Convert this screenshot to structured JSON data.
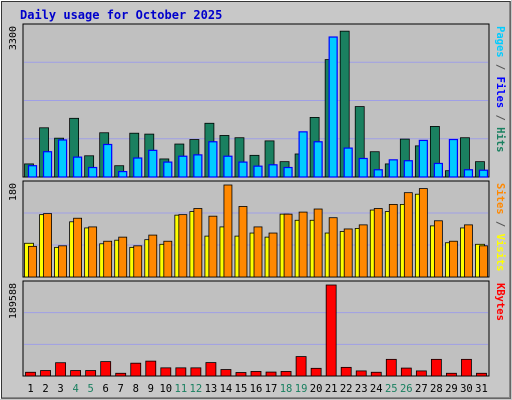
{
  "chart_data": [
    {
      "type": "bar",
      "title": "Daily usage for October 2025",
      "panel": "top",
      "ymax_label": "3300",
      "ylim": [
        0,
        3300
      ],
      "right_labels": [
        {
          "text": "Pages",
          "color": "#00ccff"
        },
        {
          "text": " / ",
          "color": "#555555"
        },
        {
          "text": "Files",
          "color": "#0000ff"
        },
        {
          "text": " / ",
          "color": "#555555"
        },
        {
          "text": "Hits",
          "color": "#1a8060"
        }
      ],
      "categories": [
        "1",
        "2",
        "3",
        "4",
        "5",
        "6",
        "7",
        "8",
        "9",
        "10",
        "11",
        "12",
        "13",
        "14",
        "15",
        "16",
        "17",
        "18",
        "19",
        "20",
        "21",
        "22",
        "23",
        "24",
        "25",
        "26",
        "27",
        "28",
        "29",
        "30",
        "31"
      ],
      "weekend_days": [
        "4",
        "5",
        "11",
        "12",
        "18",
        "19",
        "25",
        "26"
      ],
      "series": [
        {
          "name": "Hits",
          "color": "#1a8060",
          "values": [
            290,
            1090,
            860,
            1300,
            470,
            980,
            250,
            970,
            950,
            400,
            730,
            830,
            1190,
            920,
            870,
            480,
            800,
            340,
            510,
            1320,
            2600,
            3230,
            1560,
            560,
            290,
            840,
            690,
            1120,
            140,
            870,
            340
          ]
        },
        {
          "name": "Files",
          "color": "#0000ff",
          "values": [
            250,
            560,
            820,
            440,
            210,
            720,
            120,
            420,
            590,
            330,
            460,
            490,
            780,
            460,
            330,
            240,
            270,
            210,
            1000,
            780,
            3100,
            640,
            410,
            160,
            380,
            360,
            810,
            300,
            830,
            160,
            150
          ]
        },
        {
          "name": "Pages",
          "color": "#00ccff",
          "values": [
            250,
            560,
            820,
            440,
            210,
            720,
            120,
            420,
            590,
            330,
            460,
            490,
            780,
            460,
            330,
            240,
            270,
            210,
            1000,
            780,
            3100,
            640,
            410,
            160,
            380,
            360,
            810,
            300,
            830,
            160,
            150
          ]
        }
      ]
    },
    {
      "type": "bar",
      "panel": "middle",
      "ymax_label": "180",
      "ylim": [
        0,
        180
      ],
      "right_labels": [
        {
          "text": "Sites",
          "color": "#ff8800"
        },
        {
          "text": " / ",
          "color": "#555555"
        },
        {
          "text": "Visits",
          "color": "#ffff00"
        }
      ],
      "series": [
        {
          "name": "Visits",
          "color": "#ffff00",
          "values": [
            66,
            122,
            58,
            108,
            96,
            65,
            72,
            58,
            73,
            64,
            121,
            128,
            80,
            98,
            80,
            86,
            78,
            123,
            111,
            111,
            86,
            89,
            95,
            131,
            128,
            142,
            162,
            100,
            67,
            96,
            64
          ]
        },
        {
          "name": "Sites",
          "color": "#ff8800",
          "values": [
            60,
            124,
            61,
            115,
            98,
            70,
            78,
            61,
            82,
            70,
            122,
            134,
            119,
            180,
            138,
            98,
            86,
            123,
            127,
            133,
            116,
            94,
            102,
            134,
            142,
            165,
            173,
            110,
            70,
            102,
            61
          ]
        }
      ]
    },
    {
      "type": "bar",
      "panel": "bottom",
      "ymax_label": "189588",
      "ylim": [
        0,
        189588
      ],
      "right_labels": [
        {
          "text": "KBytes",
          "color": "#ff0000"
        }
      ],
      "series": [
        {
          "name": "KBytes",
          "color": "#ff0000",
          "values": [
            7800,
            11400,
            27700,
            11400,
            11400,
            30000,
            5700,
            26700,
            31000,
            17000,
            17000,
            17000,
            28000,
            13500,
            7300,
            9500,
            8200,
            9500,
            40500,
            16000,
            189588,
            18000,
            10600,
            7800,
            34700,
            16500,
            10600,
            34700,
            5700,
            34700,
            5700
          ]
        }
      ]
    }
  ]
}
